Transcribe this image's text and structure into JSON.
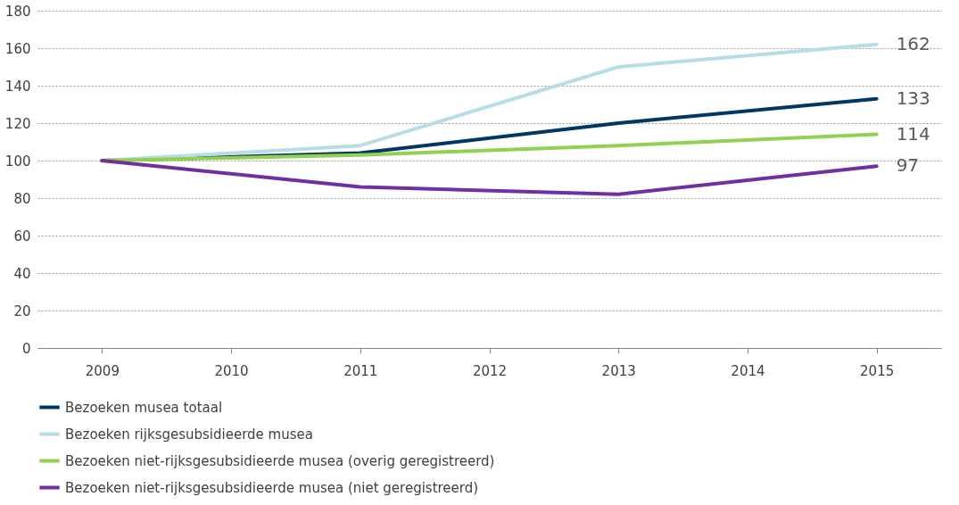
{
  "chart_data": {
    "type": "line",
    "xlim": [
      2008.5,
      2015.5
    ],
    "xticks": [
      2009,
      2010,
      2011,
      2012,
      2013,
      2014,
      2015
    ],
    "series": [
      {
        "name": "Bezoeken musea totaal",
        "color": "#003865",
        "x": [
          2009,
          2011,
          2013,
          2015
        ],
        "values": [
          100,
          104,
          120,
          133
        ],
        "value_labels": [
          null,
          null,
          null,
          "133"
        ]
      },
      {
        "name": "Bezoeken rijksgesubsidieerde musea",
        "color": "#b7dde8",
        "x": [
          2009,
          2011,
          2013,
          2015
        ],
        "values": [
          100,
          108,
          150,
          162
        ],
        "value_labels": [
          null,
          null,
          null,
          "162"
        ]
      },
      {
        "name": "Bezoeken niet-rijksgesubsidieerde musea (overig geregistreerd)",
        "color": "#92d050",
        "x": [
          2009,
          2011,
          2013,
          2015
        ],
        "values": [
          100,
          103,
          108,
          114
        ],
        "value_labels": [
          null,
          null,
          null,
          "114"
        ]
      },
      {
        "name": "Bezoeken niet-rijksgesubsidieerde musea (niet geregistreerd)",
        "color": "#7030a0",
        "x": [
          2009,
          2011,
          2013,
          2015
        ],
        "values": [
          100,
          86,
          82,
          97
        ],
        "value_labels": [
          null,
          null,
          null,
          "97"
        ]
      }
    ],
    "ylim": [
      0,
      180
    ],
    "yticks": [
      0,
      20,
      40,
      60,
      80,
      100,
      120,
      140,
      160,
      180
    ],
    "grid": "y",
    "legend": "bottom",
    "line_style": "solid",
    "marker": "none"
  }
}
